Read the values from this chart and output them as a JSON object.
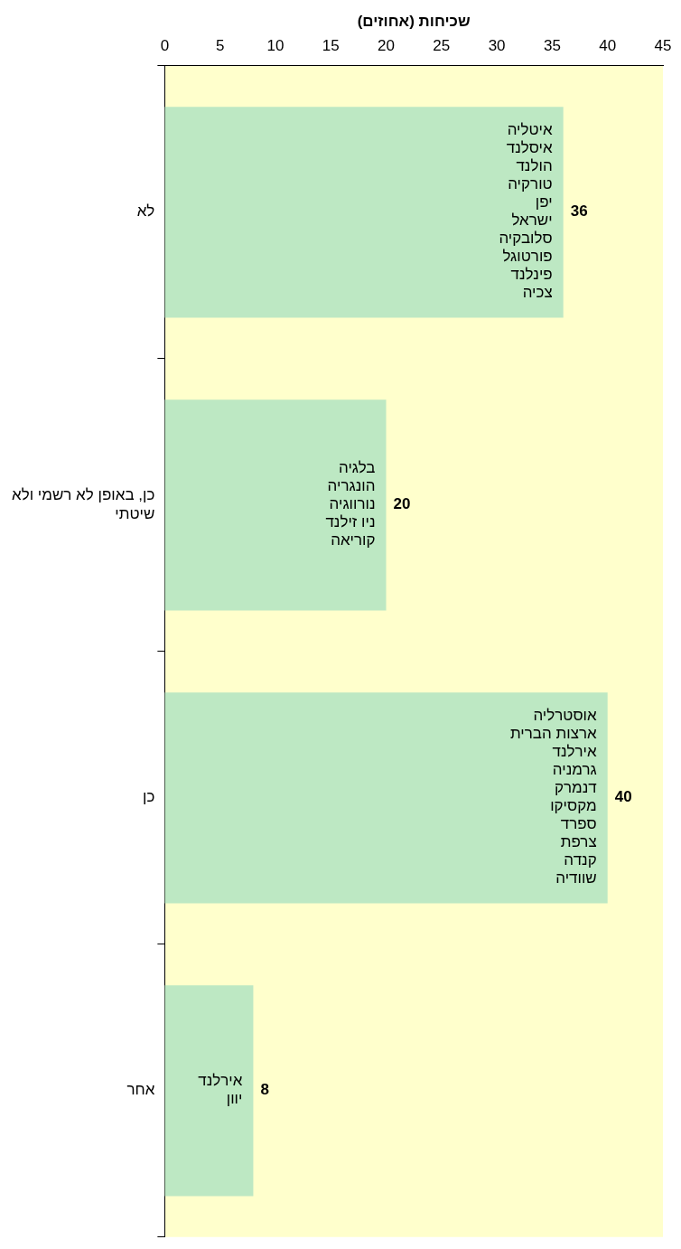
{
  "chart_data": {
    "type": "bar",
    "orientation": "horizontal",
    "ylabel": "שכיחות (אחוזים)",
    "categories": [
      "לא",
      "כן, באופן לא רשמי ולא\nשיטתי",
      "כן",
      "אחר"
    ],
    "values": [
      36,
      20,
      40,
      8
    ],
    "color": "#bde8c3",
    "data_labels": true,
    "xlim": [
      0,
      45
    ],
    "xticks": [
      0,
      5,
      10,
      15,
      20,
      25,
      30,
      35,
      40,
      45
    ],
    "grid": false,
    "legend": false,
    "annotations": [
      "איטליה\nאיסלנד\nהולנד\nטורקיה\nיפן\nישראל\nסלובקיה\nפורטוגל\nפינלנד\nצכיה",
      "בלגיה\nהונגריה\nנורווגיה\nניו זילנד\nקוריאה",
      "אוסטרליה\nארצות הברית\nאירלנד\nגרמניה\nדנמרק\nמקסיקו\nספרד\nצרפת\nקנדה\nשוודיה",
      "אירלנד\nיוון"
    ]
  }
}
